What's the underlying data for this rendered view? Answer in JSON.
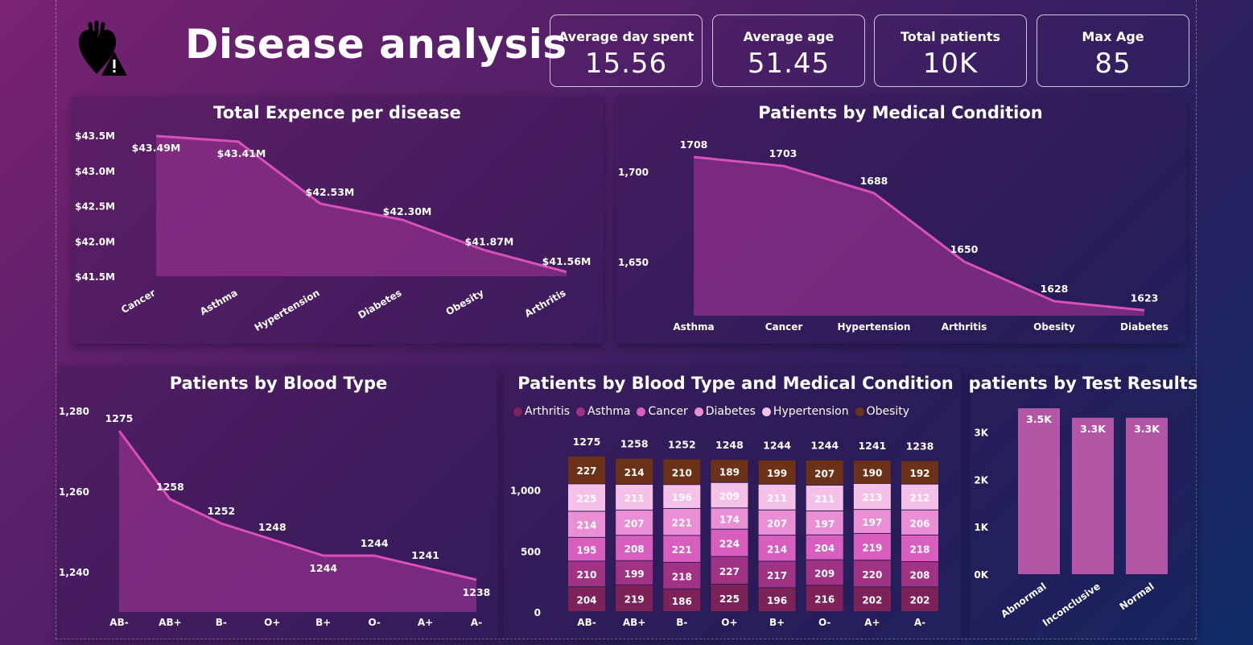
{
  "header": {
    "title": "Disease analysis",
    "logo_icon": "heart-warning-icon"
  },
  "kpis": [
    {
      "label": "Average day spent",
      "value": "15.56"
    },
    {
      "label": "Average age",
      "value": "51.45"
    },
    {
      "label": "Total patients",
      "value": "10K"
    },
    {
      "label": "Max Age",
      "value": "85"
    }
  ],
  "colors": {
    "area_line": "#d94fbd",
    "area_fill": "#8f2f8a",
    "bar_fill": "#b356a6",
    "conditions": {
      "Arthritis": "#7d2258",
      "Asthma": "#a03384",
      "Cancer": "#d95fbf",
      "Diabetes": "#ea8fd4",
      "Hypertension": "#f5c1e8",
      "Obesity": "#6b3217"
    }
  },
  "chart_data": [
    {
      "id": "expense",
      "type": "area",
      "title": "Total Expence per disease",
      "categories": [
        "Cancer",
        "Asthma",
        "Hypertension",
        "Diabetes",
        "Obesity",
        "Arthritis"
      ],
      "values": [
        43.49,
        43.41,
        42.53,
        42.3,
        41.87,
        41.56
      ],
      "data_labels": [
        "$43.49M",
        "$43.41M",
        "$42.53M",
        "$42.30M",
        "$41.87M",
        "$41.56M"
      ],
      "yticks": [
        "$41.5M",
        "$42.0M",
        "$42.5M",
        "$43.0M",
        "$43.5M"
      ],
      "ytick_values": [
        41.5,
        42.0,
        42.5,
        43.0,
        43.5
      ],
      "ylim": [
        41.5,
        43.5
      ],
      "grid": false
    },
    {
      "id": "condition",
      "type": "area",
      "title": "Patients by Medical Condition",
      "categories": [
        "Asthma",
        "Cancer",
        "Hypertension",
        "Arthritis",
        "Obesity",
        "Diabetes"
      ],
      "values": [
        1708,
        1703,
        1688,
        1650,
        1628,
        1623
      ],
      "data_labels": [
        "1708",
        "1703",
        "1688",
        "1650",
        "1628",
        "1623"
      ],
      "yticks": [
        "1,650",
        "1,700"
      ],
      "ytick_values": [
        1650,
        1700
      ],
      "ylim": [
        1620,
        1708
      ],
      "grid": false
    },
    {
      "id": "blood",
      "type": "area",
      "title": "Patients by Blood Type",
      "categories": [
        "AB-",
        "AB+",
        "B-",
        "O+",
        "B+",
        "O-",
        "A+",
        "A-"
      ],
      "values": [
        1275,
        1258,
        1252,
        1248,
        1244,
        1244,
        1241,
        1238
      ],
      "data_labels": [
        "1275",
        "1258",
        "1252",
        "1248",
        "1244",
        "1244",
        "1241",
        "1238"
      ],
      "yticks": [
        "1,240",
        "1,260",
        "1,280"
      ],
      "ytick_values": [
        1240,
        1260,
        1280
      ],
      "ylim": [
        1230,
        1280
      ],
      "grid": false
    },
    {
      "id": "stacked",
      "type": "bar",
      "stacked": true,
      "title": "Patients by Blood Type and Medical Condition",
      "categories": [
        "AB-",
        "AB+",
        "B-",
        "O+",
        "B+",
        "O-",
        "A+",
        "A-"
      ],
      "totals": [
        1275,
        1258,
        1252,
        1248,
        1244,
        1244,
        1241,
        1238
      ],
      "total_labels": [
        "1275",
        "1258",
        "1252",
        "1248",
        "1244",
        "1244",
        "1241",
        "1238"
      ],
      "series": [
        {
          "name": "Arthritis",
          "values": [
            204,
            219,
            186,
            225,
            196,
            216,
            202,
            202
          ]
        },
        {
          "name": "Asthma",
          "values": [
            210,
            199,
            218,
            227,
            217,
            209,
            220,
            208
          ]
        },
        {
          "name": "Cancer",
          "values": [
            195,
            208,
            221,
            224,
            214,
            204,
            219,
            218
          ]
        },
        {
          "name": "Diabetes",
          "values": [
            214,
            207,
            221,
            174,
            207,
            197,
            197,
            206
          ]
        },
        {
          "name": "Hypertension",
          "values": [
            225,
            211,
            196,
            209,
            211,
            211,
            213,
            212
          ]
        },
        {
          "name": "Obesity",
          "values": [
            227,
            214,
            210,
            189,
            199,
            207,
            190,
            192
          ]
        }
      ],
      "yticks": [
        "0",
        "500",
        "1,000"
      ],
      "ytick_values": [
        0,
        500,
        1000
      ],
      "ylim": [
        0,
        1275
      ],
      "legend": "top-left"
    },
    {
      "id": "tests",
      "type": "bar",
      "title": "patients by Test Results",
      "categories": [
        "Abnormal",
        "Inconclusive",
        "Normal"
      ],
      "values": [
        3500,
        3300,
        3300
      ],
      "data_labels": [
        "3.5K",
        "3.3K",
        "3.3K"
      ],
      "yticks": [
        "0K",
        "1K",
        "2K",
        "3K"
      ],
      "ytick_values": [
        0,
        1000,
        2000,
        3000
      ],
      "ylim": [
        0,
        3500
      ]
    }
  ]
}
